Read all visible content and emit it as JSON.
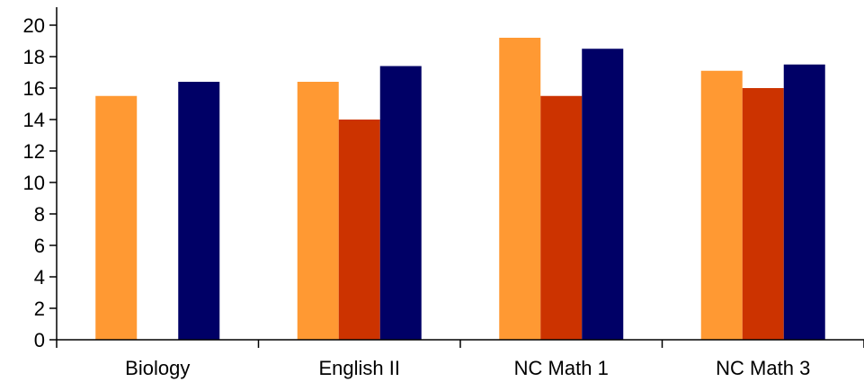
{
  "chart_data": {
    "type": "bar",
    "title": "",
    "xlabel": "",
    "ylabel": "",
    "categories": [
      "Biology",
      "English II",
      "NC Math 1",
      "NC Math 3"
    ],
    "ylim": [
      0,
      20
    ],
    "yticks": [
      "0",
      "2",
      "4",
      "6",
      "8",
      "10",
      "12",
      "14",
      "16",
      "18",
      "20"
    ],
    "grid": false,
    "legend": "none",
    "series": [
      {
        "color": "#FF9933",
        "values": [
          15.5,
          16.4,
          19.2,
          17.1
        ]
      },
      {
        "color": "#CC3300",
        "values": [
          null,
          14.0,
          15.5,
          16.0
        ]
      },
      {
        "color": "#000066",
        "values": [
          16.4,
          17.4,
          18.5,
          17.5
        ]
      }
    ]
  }
}
